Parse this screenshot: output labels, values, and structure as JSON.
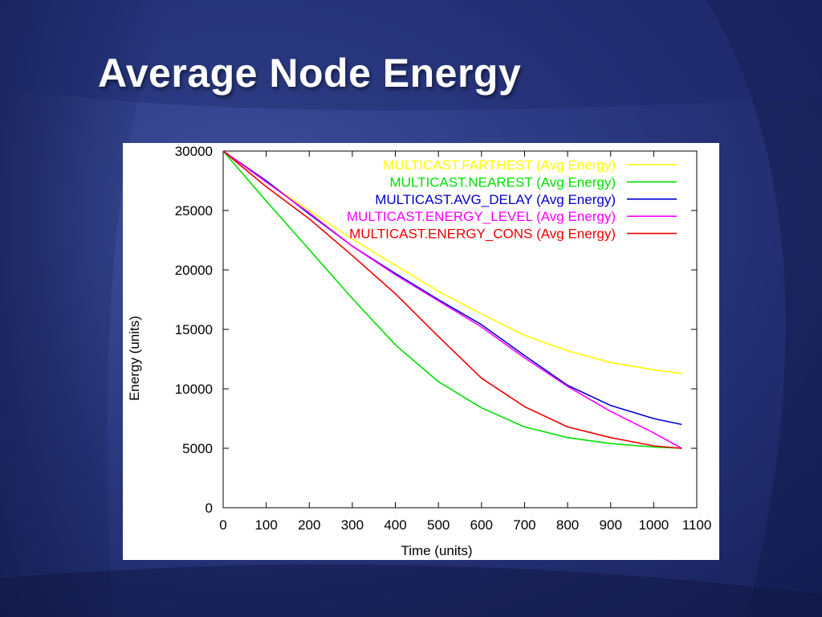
{
  "slide": {
    "title": "Average Node Energy"
  },
  "chart_data": {
    "type": "line",
    "title": "",
    "xlabel": "Time (units)",
    "ylabel": "Energy (units)",
    "xlim": [
      0,
      1100
    ],
    "ylim": [
      0,
      30000
    ],
    "xticks": [
      0,
      100,
      200,
      300,
      400,
      500,
      600,
      700,
      800,
      900,
      1000,
      1100
    ],
    "yticks": [
      0,
      5000,
      10000,
      15000,
      20000,
      25000,
      30000
    ],
    "grid": false,
    "legend_position": "top-right",
    "x": [
      0,
      100,
      200,
      300,
      400,
      500,
      600,
      700,
      800,
      900,
      1000,
      1065
    ],
    "series": [
      {
        "name": "MULTICAST.FARTHEST (Avg Energy)",
        "color": "#ffff00",
        "values": [
          30000,
          27400,
          25000,
          22600,
          20400,
          18200,
          16300,
          14500,
          13200,
          12200,
          11600,
          11300
        ]
      },
      {
        "name": "MULTICAST.NEAREST (Avg Energy)",
        "color": "#00e000",
        "values": [
          30000,
          25800,
          21700,
          17600,
          13700,
          10600,
          8400,
          6800,
          5900,
          5400,
          5100,
          5000
        ]
      },
      {
        "name": "MULTICAST.AVG_DELAY (Avg Energy)",
        "color": "#0000cc",
        "values": [
          30000,
          27500,
          24700,
          22000,
          19700,
          17500,
          15400,
          12800,
          10300,
          8600,
          7500,
          7000
        ]
      },
      {
        "name": "MULTICAST.ENERGY_LEVEL (Avg Energy)",
        "color": "#ff00ff",
        "values": [
          30000,
          27400,
          24800,
          22000,
          19600,
          17400,
          15200,
          12600,
          10200,
          8100,
          6300,
          5000
        ]
      },
      {
        "name": "MULTICAST.ENERGY_CONS (Avg Energy)",
        "color": "#ee0000",
        "values": [
          30000,
          27000,
          24300,
          21200,
          18000,
          14400,
          10900,
          8500,
          6800,
          5900,
          5200,
          5000
        ]
      }
    ]
  }
}
